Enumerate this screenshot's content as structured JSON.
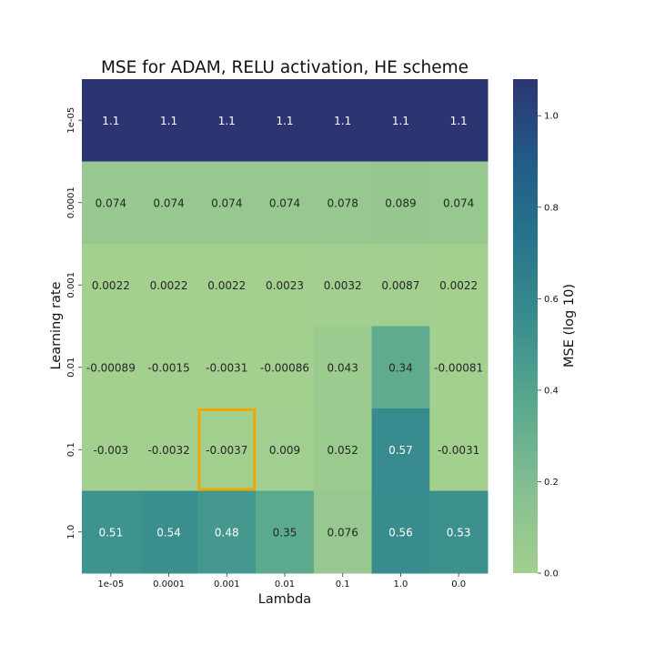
{
  "chart_data": {
    "type": "heatmap",
    "title": "MSE for ADAM, RELU activation, HE scheme",
    "xlabel": "Lambda",
    "ylabel": "Learning rate",
    "x_categories": [
      "1e-05",
      "0.0001",
      "0.001",
      "0.01",
      "0.1",
      "1.0",
      "0.0"
    ],
    "y_categories": [
      "1e-05",
      "0.0001",
      "0.001",
      "0.01",
      "0.1",
      "1.0"
    ],
    "values": [
      [
        1.1,
        1.1,
        1.1,
        1.1,
        1.1,
        1.1,
        1.1
      ],
      [
        0.074,
        0.074,
        0.074,
        0.074,
        0.078,
        0.089,
        0.074
      ],
      [
        0.0022,
        0.0022,
        0.0022,
        0.0023,
        0.0032,
        0.0087,
        0.0022
      ],
      [
        -0.00089,
        -0.0015,
        -0.0031,
        -0.00086,
        0.043,
        0.34,
        -0.00081
      ],
      [
        -0.003,
        -0.0032,
        -0.0037,
        0.009,
        0.052,
        0.57,
        -0.0031
      ],
      [
        0.51,
        0.54,
        0.48,
        0.35,
        0.076,
        0.56,
        0.53
      ]
    ],
    "labels": [
      [
        "1.1",
        "1.1",
        "1.1",
        "1.1",
        "1.1",
        "1.1",
        "1.1"
      ],
      [
        "0.074",
        "0.074",
        "0.074",
        "0.074",
        "0.078",
        "0.089",
        "0.074"
      ],
      [
        "0.0022",
        "0.0022",
        "0.0022",
        "0.0023",
        "0.0032",
        "0.0087",
        "0.0022"
      ],
      [
        "-0.00089",
        "-0.0015",
        "-0.0031",
        "-0.00086",
        "0.043",
        "0.34",
        "-0.00081"
      ],
      [
        "-0.003",
        "-0.0032",
        "-0.0037",
        "0.009",
        "0.052",
        "0.57",
        "-0.0031"
      ],
      [
        "0.51",
        "0.54",
        "0.48",
        "0.35",
        "0.076",
        "0.56",
        "0.53"
      ]
    ],
    "colorbar": {
      "label": "MSE (log 10)",
      "range": [
        0.0,
        1.08
      ],
      "ticks": [
        "0.0",
        "0.2",
        "0.4",
        "0.6",
        "0.8",
        "1.0"
      ],
      "colormap": "crest",
      "color_stops": [
        "#a3cf8f",
        "#86bf90",
        "#5aa98e",
        "#3a8f8e",
        "#27768b",
        "#215c87",
        "#2c3572"
      ]
    },
    "highlight": {
      "row": 4,
      "col": 2,
      "color": "#f5a500"
    }
  }
}
